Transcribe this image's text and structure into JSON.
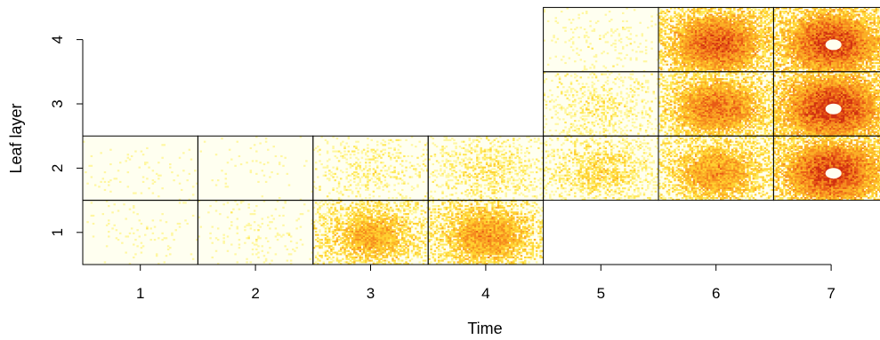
{
  "chart_data": {
    "type": "heatmap",
    "xlabel": "Time",
    "ylabel": "Leaf layer",
    "x_ticks": [
      "1",
      "2",
      "3",
      "4",
      "5",
      "6",
      "7"
    ],
    "y_ticks": [
      "1",
      "2",
      "3",
      "4"
    ],
    "background_color": "#FFFFF0",
    "color_scale": [
      "#FFFFE5",
      "#FFF7A0",
      "#FFE85A",
      "#FFD030",
      "#FBAE25",
      "#F58A1E",
      "#E85A16",
      "#D03010"
    ],
    "panel_grid": {
      "cols": 60,
      "rows": 40
    },
    "panels": [
      {
        "time": 1,
        "layer": 1,
        "intensity": 0.04
      },
      {
        "time": 1,
        "layer": 2,
        "intensity": 0.03
      },
      {
        "time": 2,
        "layer": 1,
        "intensity": 0.06
      },
      {
        "time": 2,
        "layer": 2,
        "intensity": 0.03
      },
      {
        "time": 3,
        "layer": 1,
        "intensity": 0.55
      },
      {
        "time": 3,
        "layer": 2,
        "intensity": 0.18
      },
      {
        "time": 4,
        "layer": 1,
        "intensity": 0.62
      },
      {
        "time": 4,
        "layer": 2,
        "intensity": 0.28
      },
      {
        "time": 5,
        "layer": 2,
        "intensity": 0.35
      },
      {
        "time": 5,
        "layer": 3,
        "intensity": 0.22
      },
      {
        "time": 5,
        "layer": 4,
        "intensity": 0.07
      },
      {
        "time": 6,
        "layer": 2,
        "intensity": 0.62
      },
      {
        "time": 6,
        "layer": 3,
        "intensity": 0.72
      },
      {
        "time": 6,
        "layer": 4,
        "intensity": 0.82
      },
      {
        "time": 7,
        "layer": 2,
        "intensity": 0.92
      },
      {
        "time": 7,
        "layer": 3,
        "intensity": 0.95
      },
      {
        "time": 7,
        "layer": 4,
        "intensity": 0.9
      }
    ]
  }
}
